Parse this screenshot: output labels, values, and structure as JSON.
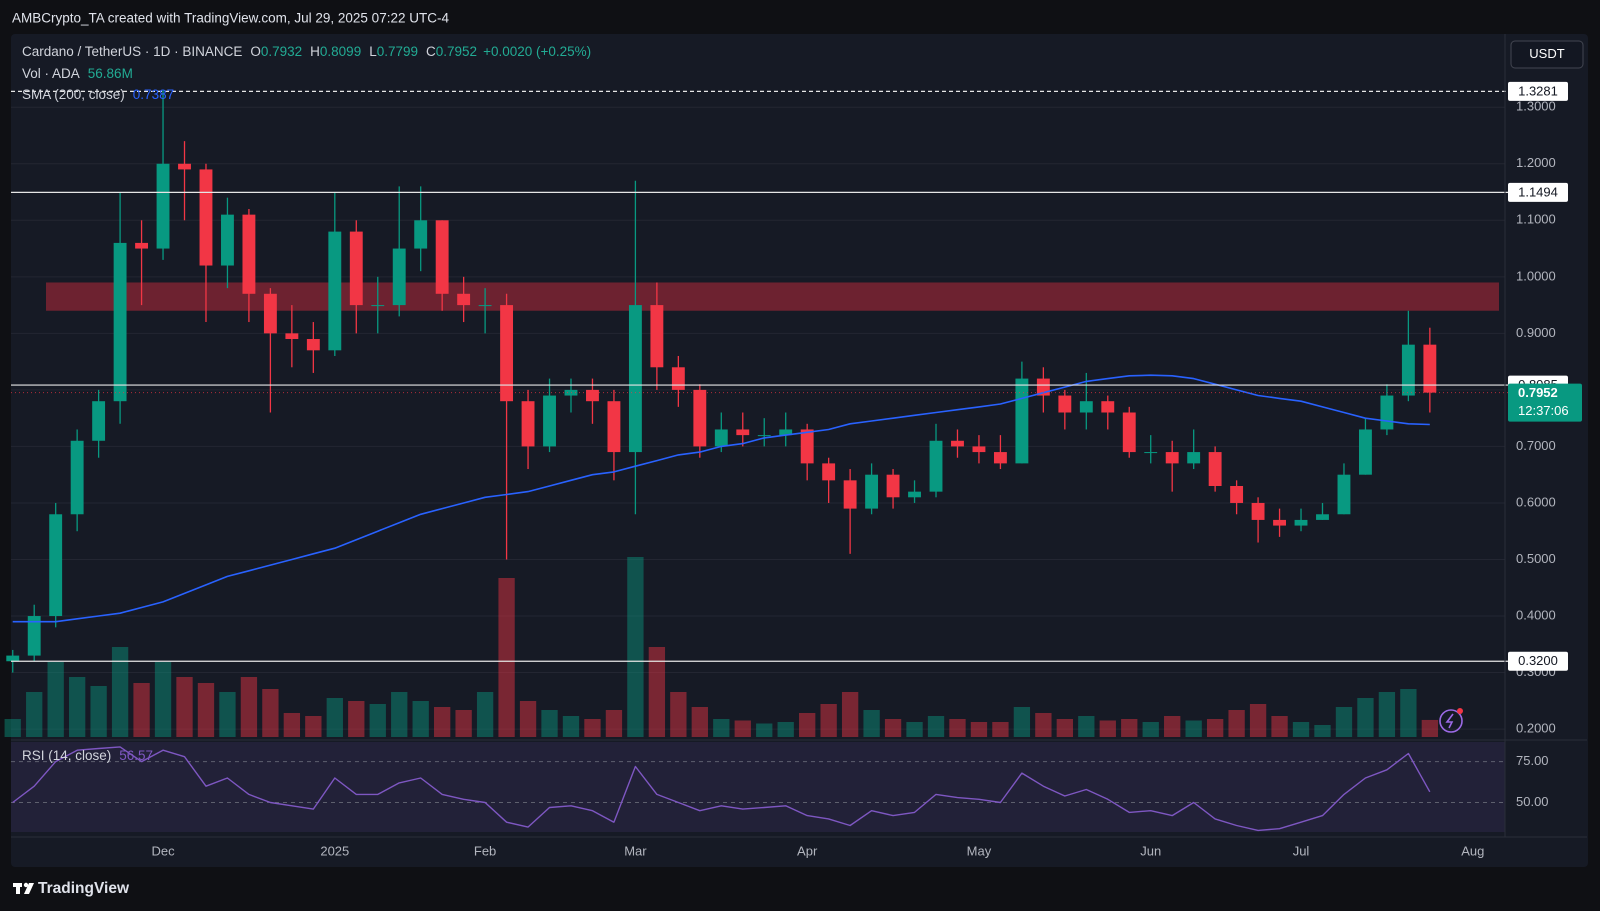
{
  "header": "AMBCrypto_TA created with TradingView.com, Jul 29, 2025 07:22 UTC-4",
  "footer": "TradingView",
  "currency": "USDT",
  "chart_data": {
    "type": "candlestick",
    "title": "Cardano / TetherUS · 1D · BINANCE",
    "ohlc_legend": [
      {
        "key": "O",
        "value": "0.7932"
      },
      {
        "key": "H",
        "value": "0.8099"
      },
      {
        "key": "L",
        "value": "0.7799"
      },
      {
        "key": "C",
        "value": "0.7952"
      }
    ],
    "change": "+0.0020 (+0.25%)",
    "categories": [
      null,
      null,
      null,
      null,
      null,
      null,
      null,
      "Dec",
      null,
      null,
      null,
      null,
      null,
      null,
      null,
      "2025",
      null,
      null,
      null,
      null,
      null,
      null,
      "Feb",
      null,
      null,
      null,
      null,
      null,
      null,
      "Mar",
      null,
      null,
      null,
      null,
      null,
      null,
      null,
      "Apr",
      null,
      null,
      null,
      null,
      null,
      null,
      null,
      "May",
      null,
      null,
      null,
      null,
      null,
      null,
      null,
      "Jun",
      null,
      null,
      null,
      null,
      null,
      null,
      "Jul",
      null,
      null,
      null,
      null,
      null,
      null,
      null,
      "Aug",
      null
    ],
    "open": [
      0.32,
      0.33,
      0.4,
      0.58,
      0.71,
      0.78,
      1.06,
      1.05,
      1.2,
      1.19,
      1.02,
      1.11,
      0.97,
      0.9,
      0.89,
      0.87,
      1.08,
      0.95,
      0.95,
      1.05,
      1.1,
      0.97,
      0.95,
      0.95,
      0.78,
      0.7,
      0.79,
      0.8,
      0.78,
      0.69,
      0.95,
      0.84,
      0.8,
      0.7,
      0.73,
      0.72,
      0.72,
      0.73,
      0.67,
      0.64,
      0.59,
      0.65,
      0.61,
      0.62,
      0.71,
      0.7,
      0.69,
      0.67,
      0.82,
      0.79,
      0.76,
      0.78,
      0.76,
      0.69,
      0.69,
      0.67,
      0.69,
      0.63,
      0.6,
      0.57,
      0.56,
      0.57,
      0.58,
      0.65,
      0.73,
      0.79,
      0.88,
      null,
      null,
      null
    ],
    "high": [
      0.34,
      0.42,
      0.6,
      0.73,
      0.8,
      1.15,
      1.1,
      1.33,
      1.24,
      1.2,
      1.14,
      1.12,
      0.98,
      0.95,
      0.92,
      1.15,
      1.1,
      1.0,
      1.16,
      1.16,
      1.1,
      1.0,
      0.98,
      0.97,
      0.8,
      0.82,
      0.82,
      0.82,
      0.8,
      1.17,
      0.99,
      0.86,
      0.81,
      0.76,
      0.76,
      0.75,
      0.76,
      0.74,
      0.68,
      0.66,
      0.67,
      0.66,
      0.64,
      0.74,
      0.73,
      0.72,
      0.72,
      0.85,
      0.84,
      0.8,
      0.83,
      0.79,
      0.77,
      0.72,
      0.71,
      0.73,
      0.7,
      0.64,
      0.61,
      0.59,
      0.59,
      0.6,
      0.67,
      0.75,
      0.81,
      0.94,
      0.91,
      null,
      null,
      null
    ],
    "low": [
      0.3,
      0.32,
      0.38,
      0.55,
      0.68,
      0.74,
      0.95,
      1.03,
      1.1,
      0.92,
      0.98,
      0.92,
      0.76,
      0.84,
      0.83,
      0.86,
      0.9,
      0.9,
      0.93,
      1.01,
      0.94,
      0.92,
      0.9,
      0.5,
      0.66,
      0.69,
      0.76,
      0.74,
      0.64,
      0.58,
      0.8,
      0.77,
      0.68,
      0.69,
      0.7,
      0.7,
      0.7,
      0.64,
      0.6,
      0.51,
      0.58,
      0.59,
      0.6,
      0.61,
      0.68,
      0.67,
      0.66,
      0.67,
      0.76,
      0.73,
      0.73,
      0.73,
      0.68,
      0.67,
      0.62,
      0.66,
      0.62,
      0.58,
      0.53,
      0.54,
      0.55,
      0.57,
      0.58,
      0.65,
      0.72,
      0.78,
      0.76,
      null,
      null,
      null
    ],
    "close": [
      0.33,
      0.4,
      0.58,
      0.71,
      0.78,
      1.06,
      1.05,
      1.2,
      1.19,
      1.02,
      1.11,
      0.97,
      0.9,
      0.89,
      0.87,
      1.08,
      0.95,
      0.95,
      1.05,
      1.1,
      0.97,
      0.95,
      0.95,
      0.78,
      0.7,
      0.79,
      0.8,
      0.78,
      0.69,
      0.95,
      0.84,
      0.8,
      0.7,
      0.73,
      0.72,
      0.72,
      0.73,
      0.67,
      0.64,
      0.59,
      0.65,
      0.61,
      0.62,
      0.71,
      0.7,
      0.69,
      0.67,
      0.82,
      0.79,
      0.76,
      0.78,
      0.76,
      0.69,
      0.69,
      0.67,
      0.69,
      0.63,
      0.6,
      0.57,
      0.56,
      0.57,
      0.58,
      0.65,
      0.73,
      0.79,
      0.88,
      0.7952,
      null,
      null,
      null
    ],
    "up_color": "#089981",
    "down_color": "#f23645",
    "ylim": [
      0.186,
      1.426
    ],
    "yticks": [
      {
        "value": 0.2,
        "label": "0.2000"
      },
      {
        "value": 0.3,
        "label": "0.3000"
      },
      {
        "value": 0.4,
        "label": "0.4000"
      },
      {
        "value": 0.5,
        "label": "0.5000"
      },
      {
        "value": 0.6,
        "label": "0.6000"
      },
      {
        "value": 0.7,
        "label": "0.7000"
      },
      {
        "value": 0.8,
        "label": "0.8000"
      },
      {
        "value": 0.9,
        "label": "0.9000"
      },
      {
        "value": 1.0,
        "label": "1.0000"
      },
      {
        "value": 1.1,
        "label": "1.1000"
      },
      {
        "value": 1.2,
        "label": "1.2000"
      },
      {
        "value": 1.3,
        "label": "1.3000"
      }
    ],
    "grid": true,
    "zone": {
      "from": 0.94,
      "to": 0.99,
      "color": "#7d2433"
    },
    "levels": [
      1.3281,
      1.1494,
      0.8085,
      {
        "value": 0.32,
        "label": "0.3200"
      }
    ],
    "level_styles": [
      "dashed",
      "solid",
      "solid",
      "solid"
    ],
    "countdown": "12:37:06",
    "volume": {
      "name": "Vol · ADA",
      "values": [
        60,
        150,
        250,
        200,
        170,
        300,
        180,
        250,
        200,
        180,
        150,
        200,
        160,
        80,
        70,
        130,
        120,
        110,
        150,
        120,
        100,
        90,
        150,
        530,
        120,
        90,
        70,
        60,
        90,
        600,
        300,
        150,
        100,
        60,
        55,
        45,
        50,
        80,
        110,
        150,
        90,
        60,
        50,
        70,
        60,
        50,
        50,
        100,
        80,
        60,
        70,
        55,
        60,
        50,
        70,
        55,
        60,
        90,
        110,
        70,
        50,
        40,
        100,
        130,
        150,
        160,
        56.86,
        null,
        null,
        null
      ],
      "value_label": "56.86M",
      "ylim": [
        0,
        800
      ]
    },
    "sma": {
      "name": "SMA (200, close)",
      "color": "#2962ff",
      "values": [
        0.39,
        0.39,
        0.39,
        0.395,
        0.4,
        0.405,
        0.415,
        0.425,
        0.44,
        0.455,
        0.47,
        0.48,
        0.49,
        0.5,
        0.51,
        0.52,
        0.535,
        0.55,
        0.565,
        0.58,
        0.59,
        0.6,
        0.61,
        0.615,
        0.62,
        0.63,
        0.64,
        0.65,
        0.655,
        0.665,
        0.675,
        0.685,
        0.69,
        0.7,
        0.705,
        0.715,
        0.72,
        0.725,
        0.73,
        0.74,
        0.745,
        0.75,
        0.755,
        0.76,
        0.765,
        0.77,
        0.775,
        0.785,
        0.795,
        0.805,
        0.815,
        0.82,
        0.825,
        0.826,
        0.825,
        0.82,
        0.81,
        0.8,
        0.79,
        0.785,
        0.78,
        0.77,
        0.76,
        0.75,
        0.745,
        0.74,
        0.7387,
        null,
        null,
        null
      ]
    },
    "rsi": {
      "name": "RSI (14, close)",
      "color": "#7e57c2",
      "ylim": [
        32,
        87
      ],
      "yticks": [
        {
          "value": 75,
          "label": "75.00"
        },
        {
          "value": 50,
          "label": "50.00"
        }
      ],
      "values": [
        50,
        60,
        75,
        82,
        83,
        84,
        75,
        82,
        78,
        60,
        65,
        55,
        50,
        48,
        46,
        65,
        55,
        55,
        62,
        65,
        55,
        52,
        50,
        38,
        35,
        47,
        48,
        45,
        38,
        72,
        55,
        50,
        45,
        48,
        46,
        47,
        48,
        42,
        40,
        36,
        45,
        42,
        44,
        55,
        53,
        52,
        50,
        68,
        60,
        54,
        58,
        52,
        44,
        45,
        42,
        50,
        40,
        36,
        33,
        34,
        38,
        42,
        55,
        65,
        70,
        80,
        56.57,
        null,
        null,
        null
      ]
    }
  }
}
